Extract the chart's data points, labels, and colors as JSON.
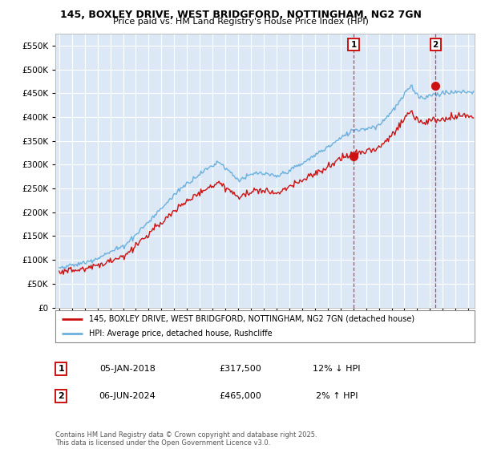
{
  "title1": "145, BOXLEY DRIVE, WEST BRIDGFORD, NOTTINGHAM, NG2 7GN",
  "title2": "Price paid vs. HM Land Registry's House Price Index (HPI)",
  "ylim": [
    0,
    575000
  ],
  "yticks": [
    0,
    50000,
    100000,
    150000,
    200000,
    250000,
    300000,
    350000,
    400000,
    450000,
    500000,
    550000
  ],
  "xlim_start": 1994.7,
  "xlim_end": 2027.5,
  "bg_color": "#dce8f5",
  "grid_color": "#ffffff",
  "hpi_color": "#6ab0de",
  "price_color": "#cc1111",
  "sale1_x": 2018.02,
  "sale1_y": 317500,
  "sale2_x": 2024.43,
  "sale2_y": 465000,
  "legend_label1": "145, BOXLEY DRIVE, WEST BRIDGFORD, NOTTINGHAM, NG2 7GN (detached house)",
  "legend_label2": "HPI: Average price, detached house, Rushcliffe",
  "ann1_label": "1",
  "ann2_label": "2",
  "ann1_date": "05-JAN-2018",
  "ann1_price": "£317,500",
  "ann1_hpi": "12% ↓ HPI",
  "ann2_date": "06-JUN-2024",
  "ann2_price": "£465,000",
  "ann2_hpi": "2% ↑ HPI",
  "footer": "Contains HM Land Registry data © Crown copyright and database right 2025.\nThis data is licensed under the Open Government Licence v3.0."
}
